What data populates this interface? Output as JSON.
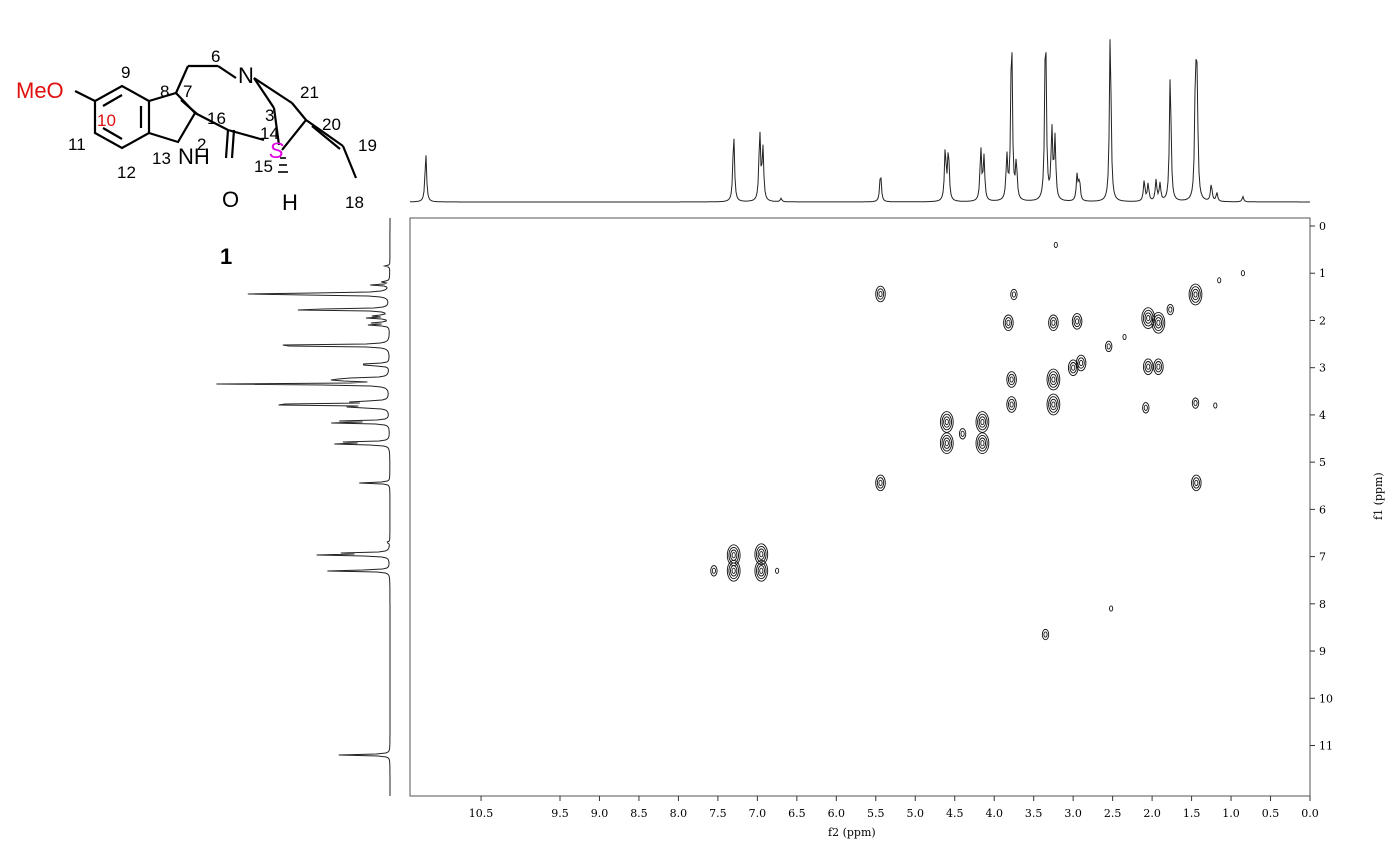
{
  "structure": {
    "compound_number": "1",
    "substituent": "MeO",
    "atom_labels": {
      "c2": "2",
      "c3": "3",
      "c6": "6",
      "c7": "7",
      "c8": "8",
      "c9": "9",
      "c10": "10",
      "c11": "11",
      "c12": "12",
      "c13": "13",
      "c14": "14",
      "c15": "15",
      "c16": "16",
      "c18": "18",
      "c19": "19",
      "c20": "20",
      "c21": "21"
    },
    "heteroatoms": {
      "n_amine": "N",
      "n_indole": "NH",
      "oxygen": "O",
      "hydrogen": "H"
    },
    "stereo_label": "S",
    "colors": {
      "methoxy": "#e01010",
      "stereo": "#e000e0"
    }
  },
  "chart_data": {
    "type": "heatmap",
    "experiment_hint": "1H-1H correlation contour map",
    "xlabel": "f2 (ppm)",
    "ylabel": "f1 (ppm)",
    "xlim": [
      11.4,
      0.0
    ],
    "ylim": [
      0,
      11.9
    ],
    "x_ticks": [
      "10.5",
      "9.5",
      "9.0",
      "8.5",
      "8.0",
      "7.5",
      "7.0",
      "6.5",
      "6.0",
      "5.5",
      "5.0",
      "4.5",
      "4.0",
      "3.5",
      "3.0",
      "2.5",
      "2.0",
      "1.5",
      "1.0",
      "0.5",
      "0.0"
    ],
    "x_tick_values": [
      10.5,
      9.5,
      9.0,
      8.5,
      8.0,
      7.5,
      7.0,
      6.5,
      6.0,
      5.5,
      5.0,
      4.5,
      4.0,
      3.5,
      3.0,
      2.5,
      2.0,
      1.5,
      1.0,
      0.5,
      0.0
    ],
    "y_ticks": [
      "0",
      "1",
      "2",
      "3",
      "4",
      "5",
      "6",
      "7",
      "8",
      "9",
      "10",
      "11"
    ],
    "y_tick_values": [
      0,
      1,
      2,
      3,
      4,
      5,
      6,
      7,
      8,
      9,
      10,
      11
    ],
    "projection_peaks": [
      {
        "ppm": 11.2,
        "intensity": 0.28
      },
      {
        "ppm": 7.3,
        "intensity": 0.4
      },
      {
        "ppm": 6.97,
        "intensity": 0.4
      },
      {
        "ppm": 6.93,
        "intensity": 0.3
      },
      {
        "ppm": 6.7,
        "intensity": 0.02
      },
      {
        "ppm": 5.44,
        "intensity": 0.17
      },
      {
        "ppm": 4.62,
        "intensity": 0.3
      },
      {
        "ppm": 4.58,
        "intensity": 0.3
      },
      {
        "ppm": 4.17,
        "intensity": 0.3
      },
      {
        "ppm": 4.13,
        "intensity": 0.25
      },
      {
        "ppm": 3.84,
        "intensity": 0.25
      },
      {
        "ppm": 3.78,
        "intensity": 1.0
      },
      {
        "ppm": 3.72,
        "intensity": 0.22
      },
      {
        "ppm": 3.35,
        "intensity": 1.05
      },
      {
        "ppm": 3.27,
        "intensity": 0.4
      },
      {
        "ppm": 3.23,
        "intensity": 0.35
      },
      {
        "ppm": 2.95,
        "intensity": 0.15
      },
      {
        "ppm": 2.92,
        "intensity": 0.12
      },
      {
        "ppm": 2.53,
        "intensity": 1.0
      },
      {
        "ppm": 2.1,
        "intensity": 0.12
      },
      {
        "ppm": 2.05,
        "intensity": 0.1
      },
      {
        "ppm": 1.95,
        "intensity": 0.12
      },
      {
        "ppm": 1.9,
        "intensity": 0.1
      },
      {
        "ppm": 1.77,
        "intensity": 0.75
      },
      {
        "ppm": 1.45,
        "intensity": 0.7
      },
      {
        "ppm": 1.43,
        "intensity": 0.6
      },
      {
        "ppm": 1.25,
        "intensity": 0.1
      },
      {
        "ppm": 1.18,
        "intensity": 0.05
      },
      {
        "ppm": 0.85,
        "intensity": 0.03
      }
    ],
    "cross_peaks": [
      {
        "f2": 7.3,
        "f1": 6.97,
        "size": 1.4
      },
      {
        "f2": 6.95,
        "f1": 7.3,
        "size": 1.4
      },
      {
        "f2": 7.3,
        "f1": 7.3,
        "size": 1.3
      },
      {
        "f2": 6.95,
        "f1": 6.95,
        "size": 1.3
      },
      {
        "f2": 5.44,
        "f1": 1.44,
        "size": 1.1
      },
      {
        "f2": 1.44,
        "f1": 5.44,
        "size": 1.1
      },
      {
        "f2": 5.44,
        "f1": 5.44,
        "size": 1.1
      },
      {
        "f2": 4.6,
        "f1": 4.15,
        "size": 1.4
      },
      {
        "f2": 4.15,
        "f1": 4.6,
        "size": 1.4
      },
      {
        "f2": 4.6,
        "f1": 4.6,
        "size": 1.4
      },
      {
        "f2": 4.15,
        "f1": 4.15,
        "size": 1.4
      },
      {
        "f2": 3.82,
        "f1": 2.05,
        "size": 0.9
      },
      {
        "f2": 2.08,
        "f1": 3.85,
        "size": 0.7
      },
      {
        "f2": 3.25,
        "f1": 2.05,
        "size": 1.0
      },
      {
        "f2": 2.95,
        "f1": 2.02,
        "size": 1.1
      },
      {
        "f2": 2.05,
        "f1": 2.98,
        "size": 1.0
      },
      {
        "f2": 1.92,
        "f1": 2.98,
        "size": 0.9
      },
      {
        "f2": 2.05,
        "f1": 1.95,
        "size": 1.3
      },
      {
        "f2": 1.92,
        "f1": 2.05,
        "size": 1.3
      },
      {
        "f2": 3.78,
        "f1": 3.78,
        "size": 1.1
      },
      {
        "f2": 3.78,
        "f1": 3.25,
        "size": 1.1
      },
      {
        "f2": 3.25,
        "f1": 3.78,
        "size": 1.2
      },
      {
        "f2": 3.25,
        "f1": 3.25,
        "size": 1.3
      },
      {
        "f2": 3.0,
        "f1": 3.0,
        "size": 1.1
      },
      {
        "f2": 2.9,
        "f1": 2.9,
        "size": 1.0
      },
      {
        "f2": 3.75,
        "f1": 1.45,
        "size": 0.6
      },
      {
        "f2": 1.45,
        "f1": 3.75,
        "size": 0.6
      },
      {
        "f2": 1.45,
        "f1": 1.45,
        "size": 1.2
      },
      {
        "f2": 1.77,
        "f1": 1.77,
        "size": 0.5
      },
      {
        "f2": 2.55,
        "f1": 2.55,
        "size": 0.5
      },
      {
        "f2": 2.52,
        "f1": 8.1,
        "size": 0.4
      },
      {
        "f2": 3.35,
        "f1": 8.65,
        "size": 0.6
      },
      {
        "f2": 3.22,
        "f1": 0.4,
        "size": 0.3
      },
      {
        "f2": 0.85,
        "f1": 1.0,
        "size": 0.3
      },
      {
        "f2": 1.2,
        "f1": 3.8,
        "size": 0.4
      },
      {
        "f2": 7.55,
        "f1": 7.3,
        "size": 0.5
      },
      {
        "f2": 6.75,
        "f1": 7.3,
        "size": 0.4
      },
      {
        "f2": 2.35,
        "f1": 2.35,
        "size": 0.4
      },
      {
        "f2": 4.4,
        "f1": 4.4,
        "size": 0.5
      },
      {
        "f2": 1.15,
        "f1": 1.15,
        "size": 0.4
      }
    ]
  }
}
